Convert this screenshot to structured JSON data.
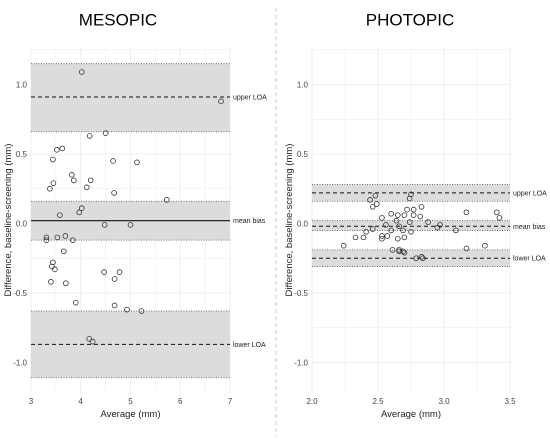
{
  "colors": {
    "band_fill": "#dcdcdc",
    "grid": "#ebebeb",
    "point_stroke": "#333333",
    "divider": "#c8c8c8"
  },
  "chart_data": [
    {
      "type": "scatter",
      "title": "MESOPIC",
      "xlabel": "Average (mm)",
      "ylabel": "Difference, baseline-screening (mm)",
      "xlim": [
        3,
        7
      ],
      "ylim": [
        -1.22,
        1.27
      ],
      "xticks": [
        3,
        4,
        5,
        6,
        7
      ],
      "yticks": [
        -1.0,
        -0.5,
        0.0,
        0.5,
        1.0
      ],
      "ytick_labels": [
        "-1.0",
        "-0.5",
        "0.0",
        "0.5",
        "1.0"
      ],
      "grid": true,
      "points": [
        {
          "x": 4.02,
          "y": 1.09
        },
        {
          "x": 6.82,
          "y": 0.88
        },
        {
          "x": 4.5,
          "y": 0.65
        },
        {
          "x": 4.18,
          "y": 0.63
        },
        {
          "x": 3.52,
          "y": 0.53
        },
        {
          "x": 3.63,
          "y": 0.54
        },
        {
          "x": 3.44,
          "y": 0.46
        },
        {
          "x": 4.65,
          "y": 0.45
        },
        {
          "x": 5.13,
          "y": 0.44
        },
        {
          "x": 3.82,
          "y": 0.35
        },
        {
          "x": 3.86,
          "y": 0.31
        },
        {
          "x": 4.2,
          "y": 0.31
        },
        {
          "x": 3.45,
          "y": 0.29
        },
        {
          "x": 3.38,
          "y": 0.25
        },
        {
          "x": 4.12,
          "y": 0.26
        },
        {
          "x": 4.67,
          "y": 0.22
        },
        {
          "x": 5.73,
          "y": 0.17
        },
        {
          "x": 4.02,
          "y": 0.11
        },
        {
          "x": 3.97,
          "y": 0.08
        },
        {
          "x": 3.58,
          "y": 0.06
        },
        {
          "x": 4.48,
          "y": -0.01
        },
        {
          "x": 5.0,
          "y": -0.01
        },
        {
          "x": 3.69,
          "y": -0.09
        },
        {
          "x": 3.31,
          "y": -0.1
        },
        {
          "x": 3.31,
          "y": -0.12
        },
        {
          "x": 3.53,
          "y": -0.1
        },
        {
          "x": 3.84,
          "y": -0.12
        },
        {
          "x": 3.66,
          "y": -0.2
        },
        {
          "x": 3.44,
          "y": -0.28
        },
        {
          "x": 3.42,
          "y": -0.31
        },
        {
          "x": 3.48,
          "y": -0.33
        },
        {
          "x": 4.47,
          "y": -0.35
        },
        {
          "x": 4.78,
          "y": -0.35
        },
        {
          "x": 4.68,
          "y": -0.4
        },
        {
          "x": 3.4,
          "y": -0.42
        },
        {
          "x": 3.7,
          "y": -0.43
        },
        {
          "x": 3.9,
          "y": -0.57
        },
        {
          "x": 4.68,
          "y": -0.59
        },
        {
          "x": 4.93,
          "y": -0.62
        },
        {
          "x": 5.22,
          "y": -0.63
        },
        {
          "x": 4.17,
          "y": -0.83
        },
        {
          "x": 4.24,
          "y": -0.85
        }
      ],
      "mean_bias": 0.02,
      "mean_bias_ci": [
        -0.12,
        0.16
      ],
      "upper_loa": 0.91,
      "upper_loa_ci": [
        0.66,
        1.15
      ],
      "lower_loa": -0.87,
      "lower_loa_ci": [
        -1.11,
        -0.63
      ],
      "annotations": {
        "upper": "upper LOA",
        "mean": "mean bias",
        "lower": "lower LOA"
      }
    },
    {
      "type": "scatter",
      "title": "PHOTOPIC",
      "xlabel": "Average (mm)",
      "ylabel": "Difference, baseline-screening (mm)",
      "xlim": [
        2.0,
        3.5
      ],
      "ylim": [
        -1.22,
        1.27
      ],
      "xticks": [
        2.0,
        2.5,
        3.0,
        3.5
      ],
      "xtick_labels": [
        "2.0",
        "2.5",
        "3.0",
        "3.5"
      ],
      "yticks": [
        -1.0,
        -0.5,
        0.0,
        0.5,
        1.0
      ],
      "ytick_labels": [
        "-1.0",
        "-0.5",
        "0.0",
        "0.5",
        "1.0"
      ],
      "grid": true,
      "points": [
        {
          "x": 2.48,
          "y": 0.2
        },
        {
          "x": 2.75,
          "y": 0.21
        },
        {
          "x": 2.74,
          "y": 0.18
        },
        {
          "x": 2.44,
          "y": 0.17
        },
        {
          "x": 2.49,
          "y": 0.14
        },
        {
          "x": 2.46,
          "y": 0.12
        },
        {
          "x": 2.83,
          "y": 0.12
        },
        {
          "x": 2.72,
          "y": 0.1
        },
        {
          "x": 2.77,
          "y": 0.1
        },
        {
          "x": 3.17,
          "y": 0.08
        },
        {
          "x": 3.4,
          "y": 0.08
        },
        {
          "x": 2.6,
          "y": 0.07
        },
        {
          "x": 2.65,
          "y": 0.06
        },
        {
          "x": 2.77,
          "y": 0.06
        },
        {
          "x": 2.7,
          "y": 0.06
        },
        {
          "x": 2.82,
          "y": 0.05
        },
        {
          "x": 3.42,
          "y": 0.04
        },
        {
          "x": 2.53,
          "y": 0.04
        },
        {
          "x": 2.64,
          "y": 0.02
        },
        {
          "x": 2.74,
          "y": 0.01
        },
        {
          "x": 2.88,
          "y": 0.01
        },
        {
          "x": 2.56,
          "y": -0.01
        },
        {
          "x": 2.66,
          "y": -0.02
        },
        {
          "x": 2.97,
          "y": -0.01
        },
        {
          "x": 2.95,
          "y": -0.03
        },
        {
          "x": 2.46,
          "y": -0.04
        },
        {
          "x": 2.6,
          "y": -0.05
        },
        {
          "x": 2.69,
          "y": -0.05
        },
        {
          "x": 3.09,
          "y": -0.05
        },
        {
          "x": 2.41,
          "y": -0.06
        },
        {
          "x": 2.75,
          "y": -0.06
        },
        {
          "x": 2.53,
          "y": -0.09
        },
        {
          "x": 2.57,
          "y": -0.09
        },
        {
          "x": 2.33,
          "y": -0.1
        },
        {
          "x": 2.39,
          "y": -0.1
        },
        {
          "x": 2.65,
          "y": -0.11
        },
        {
          "x": 2.53,
          "y": -0.11
        },
        {
          "x": 2.7,
          "y": -0.1
        },
        {
          "x": 2.24,
          "y": -0.16
        },
        {
          "x": 3.31,
          "y": -0.16
        },
        {
          "x": 3.17,
          "y": -0.18
        },
        {
          "x": 2.61,
          "y": -0.19
        },
        {
          "x": 2.66,
          "y": -0.19
        },
        {
          "x": 2.66,
          "y": -0.2
        },
        {
          "x": 2.69,
          "y": -0.2
        },
        {
          "x": 2.7,
          "y": -0.21
        },
        {
          "x": 2.83,
          "y": -0.24
        },
        {
          "x": 2.84,
          "y": -0.25
        },
        {
          "x": 2.79,
          "y": -0.25
        }
      ],
      "mean_bias": -0.02,
      "mean_bias_ci": [
        -0.05,
        0.02
      ],
      "upper_loa": 0.22,
      "upper_loa_ci": [
        0.16,
        0.28
      ],
      "lower_loa": -0.25,
      "lower_loa_ci": [
        -0.31,
        -0.19
      ],
      "annotations": {
        "upper": "upper LOA",
        "mean": "mean bias",
        "lower": "lower LOA"
      }
    }
  ]
}
